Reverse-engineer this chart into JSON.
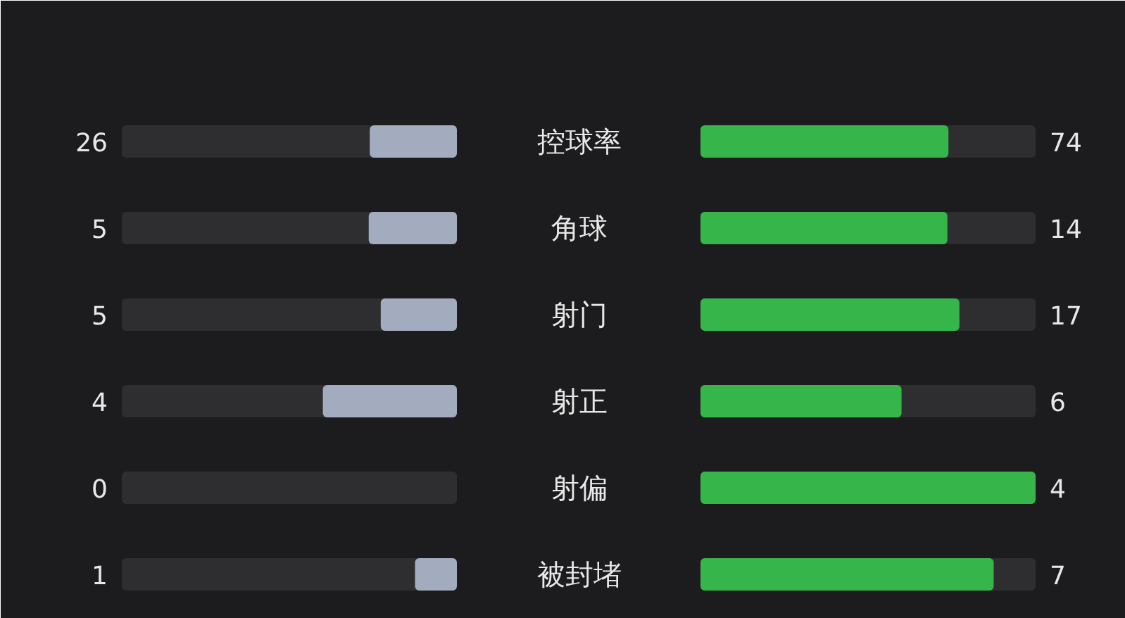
{
  "chart_data": {
    "type": "other",
    "categories": [
      "控球率",
      "角球",
      "射门",
      "射正",
      "射偏",
      "被封堵"
    ],
    "series": [
      {
        "color": "#a3abbf",
        "values": [
          26,
          5,
          5,
          4,
          0,
          1
        ]
      },
      {
        "color": "#35b54a",
        "values": [
          74,
          14,
          17,
          6,
          4,
          7
        ]
      }
    ],
    "data_labels": true
  }
}
